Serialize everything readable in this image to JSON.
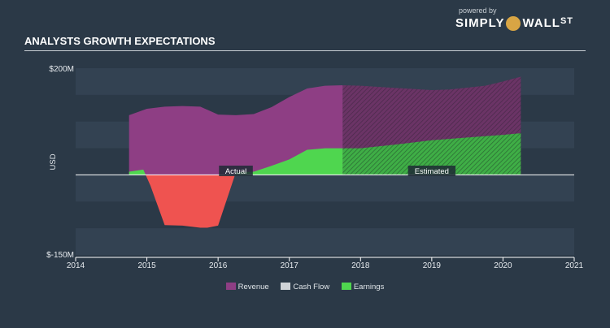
{
  "header": {
    "title": "ANALYSTS GROWTH EXPECTATIONS"
  },
  "brand": {
    "powered_by": "powered by",
    "name_left": "SIMPLY",
    "name_right": "WALL",
    "name_suffix": "ST"
  },
  "colors": {
    "background": "#2b3947",
    "band": "#334252",
    "revenue": "#8e3e84",
    "earnings": "#4fd64f",
    "cash_flow": "#cfd3d7",
    "negative": "#ef5350",
    "axis": "#ffffff"
  },
  "chart_data": {
    "type": "area",
    "title": "ANALYSTS GROWTH EXPECTATIONS",
    "ylabel": "USD",
    "xlim": [
      2014,
      2021
    ],
    "ylim": [
      -150,
      200
    ],
    "ytick_labels": [
      "$200M",
      "$-150M"
    ],
    "xtick_labels": [
      "2014",
      "2015",
      "2016",
      "2017",
      "2018",
      "2019",
      "2020",
      "2021"
    ],
    "actual_label": "Actual",
    "estimated_label": "Estimated",
    "estimate_start": 2017.75,
    "legend": [
      "Revenue",
      "Cash Flow",
      "Earnings"
    ],
    "series": [
      {
        "name": "Revenue",
        "x": [
          2014.75,
          2015.0,
          2015.25,
          2015.5,
          2015.75,
          2016.0,
          2016.25,
          2016.5,
          2016.75,
          2017.0,
          2017.25,
          2017.5,
          2017.75,
          2018.0,
          2018.5,
          2019.0,
          2019.25,
          2019.75,
          2020.0,
          2020.25
        ],
        "y": [
          112,
          124,
          128,
          129,
          128,
          113,
          112,
          114,
          127,
          146,
          162,
          167,
          168,
          167,
          163,
          159,
          160,
          167,
          175,
          184
        ]
      },
      {
        "name": "Earnings",
        "x": [
          2014.75,
          2014.95,
          2015.05,
          2015.25,
          2015.5,
          2015.75,
          2015.85,
          2016.0,
          2016.1,
          2016.25,
          2016.5,
          2016.75,
          2017.0,
          2017.25,
          2017.5,
          2017.75,
          2018.0,
          2018.5,
          2019.0,
          2019.5,
          2020.0,
          2020.25
        ],
        "y": [
          6,
          10,
          -20,
          -94,
          -95,
          -99,
          -99,
          -95,
          -55,
          5,
          6,
          17,
          29,
          47,
          50,
          50,
          50,
          57,
          65,
          70,
          75,
          78
        ]
      }
    ]
  }
}
